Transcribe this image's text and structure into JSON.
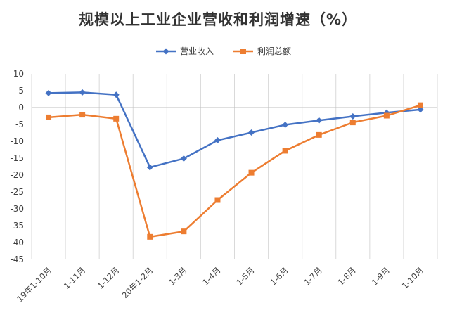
{
  "chart_data": {
    "type": "line",
    "title": "规模以上工业企业营收和利润增速（%）",
    "xlabel": "",
    "ylabel": "",
    "categories": [
      "19年1-10月",
      "1-11月",
      "1-12月",
      "20年1-2月",
      "1-3月",
      "1-4月",
      "1-5月",
      "1-6月",
      "1-7月",
      "1-8月",
      "1-9月",
      "1-10月"
    ],
    "ylim": [
      -45,
      10
    ],
    "yticks": [
      10,
      5,
      0,
      -5,
      -10,
      -15,
      -20,
      -25,
      -30,
      -35,
      -40,
      -45
    ],
    "grid": "vertical",
    "legend_position": "top-center",
    "series": [
      {
        "name": "营业收入",
        "color": "#4472c4",
        "marker": "diamond",
        "values": [
          4.3,
          4.5,
          3.8,
          -17.7,
          -15.1,
          -9.7,
          -7.4,
          -5.1,
          -3.8,
          -2.6,
          -1.5,
          -0.6
        ]
      },
      {
        "name": "利润总额",
        "color": "#ed7d31",
        "marker": "square",
        "values": [
          -2.9,
          -2.1,
          -3.3,
          -38.3,
          -36.7,
          -27.4,
          -19.3,
          -12.8,
          -8.1,
          -4.4,
          -2.4,
          0.7
        ]
      }
    ]
  }
}
